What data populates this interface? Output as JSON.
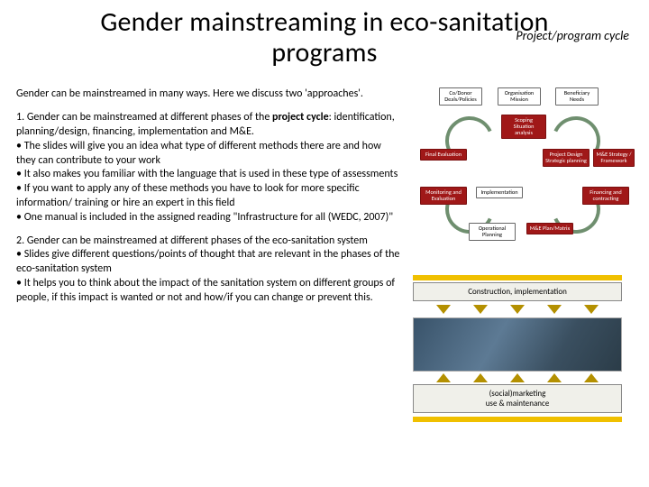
{
  "title_line1": "Gender mainstreaming in eco-sanitation",
  "title_line2": "programs",
  "subtitle": "Project/program cycle",
  "intro": "Gender can be mainstreamed in many ways. Here we discuss two 'approaches'.",
  "para1": {
    "lead_before": "1. Gender can be mainstreamed at different phases of the ",
    "lead_bold": "project cycle",
    "lead_after": ": identification, planning/design, financing, implementation and M&E.",
    "b1": "• The slides will give you an idea what type of different methods there are and how they can contribute to your work",
    "b2": "• It also makes you familiar with the language that is used in these type of assessments",
    "b3": "• If you want to apply any of these methods you have to look for more specific information/ training or hire an expert in this field",
    "b4": "• One manual is included in the assigned reading \"Infrastructure for all (WEDC, 2007)\""
  },
  "para2": {
    "lead": "2. Gender can be mainstreamed at different phases of the eco-sanitation system",
    "b1": "• Slides give different questions/points of thought that are relevant in the phases of the eco-sanitation system",
    "b2": "• It helps you to think about the impact of the sanitation system on different groups of people, if this impact is wanted or not and how/if you can change or prevent this."
  },
  "cycle": {
    "nodes": {
      "n1": "Co/Donor\nDeals/Policies",
      "n2": "Organisation\nMission",
      "n3": "Beneficiary\nNeeds",
      "n4": "Scoping\nSituation analysis",
      "n5": "Final Evaluation",
      "n6": "Project Design\nStrategic planning",
      "n7": "M&E Strategy\n/ Framework",
      "n8": "Monitoring and\nEvaluation",
      "n9": "Implementation",
      "n10": "Financing and\ncontracting",
      "n11": "Operational\nPlanning",
      "n12": "M&E\nPlan/Matrix"
    },
    "colors": {
      "arc": "#6f8f6f",
      "red": "#a01818"
    }
  },
  "stages": {
    "s1": "Construction, implementation",
    "s2": "(social)marketing\nuse & maintenance"
  },
  "colors": {
    "yellow": "#f0c000",
    "arrow": "#b49000",
    "bg": "#ffffff"
  }
}
